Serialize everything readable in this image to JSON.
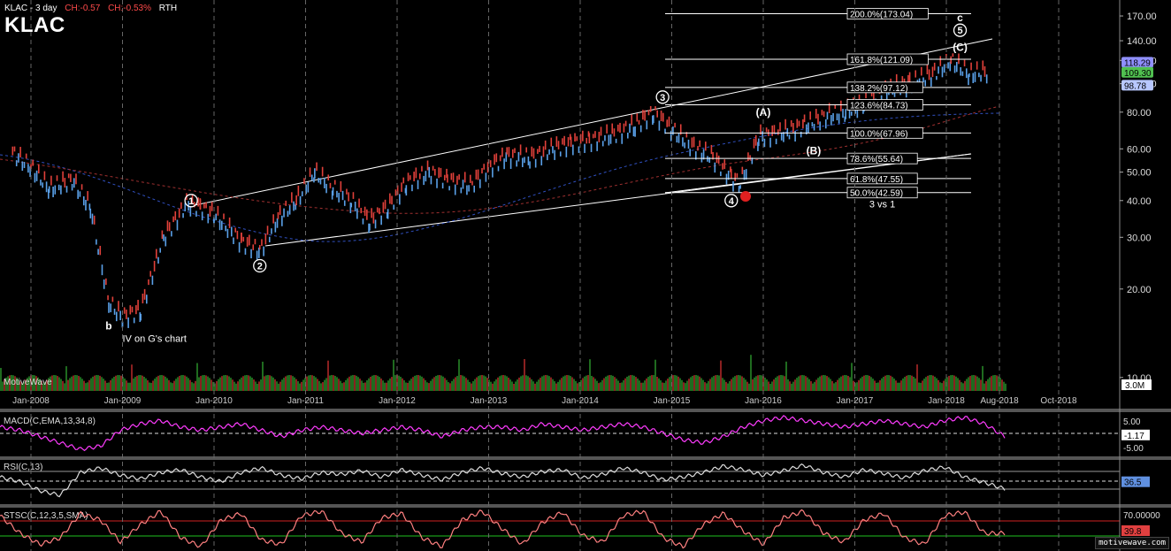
{
  "header": {
    "symbol_line": "KLAC - 3 day",
    "change_abs": "CH:-0.57",
    "change_pct": "CH:-0.53%",
    "session": "RTH",
    "big_symbol": "KLAC"
  },
  "brand": "MotiveWave",
  "watermark": "motivewave.com",
  "colors": {
    "background": "#000000",
    "up_candle": "#5aa0e8",
    "down_candle": "#e0403a",
    "fib_line": "#ffffff",
    "macd_line": "#ff3cff",
    "stoch_line": "#ff8080",
    "overbought": "#d02020",
    "oversold": "#20c020"
  },
  "chart_data": [
    {
      "type": "line",
      "title": "",
      "xlabel": "",
      "ylabel": "",
      "x_ticks": [
        "Jan-2008",
        "Jan-2009",
        "Jan-2010",
        "Jan-2011",
        "Jan-2012",
        "Jan-2013",
        "Jan-2014",
        "Jan-2015",
        "Jan-2016",
        "Jan-2017",
        "Jan-2018",
        "Aug-2018",
        "Oct-2018"
      ],
      "y_ticks": [
        "170.00",
        "140.00",
        "120.00",
        "100.00",
        "80.00",
        "60.00",
        "50.00",
        "40.00",
        "30.00",
        "20.00",
        "10.00"
      ],
      "y_scale": "log",
      "ylim": [
        9,
        190
      ],
      "price_labels": [
        {
          "text": "118.29",
          "bg": "#9090ff",
          "value": 118.29
        },
        {
          "text": "109.30",
          "bg": "#50c050",
          "value": 109.3
        },
        {
          "text": "98.78",
          "bg": "#b8c8ff",
          "value": 98.78
        }
      ],
      "series": [
        {
          "name": "price",
          "x": [
            2007.8,
            2008.0,
            2008.2,
            2008.45,
            2008.65,
            2008.85,
            2009.0,
            2009.2,
            2009.45,
            2009.7,
            2009.85,
            2010.0,
            2010.3,
            2010.5,
            2010.7,
            2010.9,
            2011.1,
            2011.3,
            2011.5,
            2011.7,
            2011.9,
            2012.1,
            2012.35,
            2012.55,
            2012.8,
            2013.0,
            2013.2,
            2013.45,
            2013.7,
            2013.9,
            2014.1,
            2014.35,
            2014.6,
            2014.8,
            2014.95,
            2015.2,
            2015.45,
            2015.65,
            2015.75,
            2015.95,
            2016.2,
            2016.45,
            2016.7,
            2016.9,
            2017.1,
            2017.35,
            2017.6,
            2017.85,
            2018.05,
            2018.25,
            2018.45
          ],
          "values": [
            58,
            52,
            44,
            47,
            38,
            18,
            16,
            17,
            30,
            39,
            38,
            36,
            29,
            27,
            35,
            40,
            50,
            44,
            40,
            34,
            38,
            46,
            50,
            47,
            45,
            52,
            57,
            56,
            60,
            63,
            64,
            67,
            72,
            80,
            72,
            62,
            56,
            48,
            46,
            66,
            68,
            72,
            78,
            80,
            86,
            96,
            100,
            108,
            120,
            108,
            110
          ]
        }
      ],
      "fib_levels": [
        {
          "text": "200.0%(173.04)",
          "value": 173.04
        },
        {
          "text": "161.8%(121.09)",
          "value": 121.09
        },
        {
          "text": "138.2%(97.12)",
          "value": 97.12
        },
        {
          "text": "123.6%(84.73)",
          "value": 84.73
        },
        {
          "text": "100.0%(67.96)",
          "value": 67.96
        },
        {
          "text": "78.6%(55.64)",
          "value": 55.64
        },
        {
          "text": "61.8%(47.55)",
          "value": 47.55
        },
        {
          "text": "50.0%(42.59)",
          "value": 42.59
        }
      ],
      "annotations": [
        {
          "text": "1",
          "circled": true,
          "x": 2009.75,
          "y": 40
        },
        {
          "text": "2",
          "circled": true,
          "x": 2010.5,
          "y": 24
        },
        {
          "text": "3",
          "circled": true,
          "x": 2014.9,
          "y": 90
        },
        {
          "text": "4",
          "circled": true,
          "x": 2015.65,
          "y": 40
        },
        {
          "text": "5",
          "circled": true,
          "x": 2018.15,
          "y": 152
        },
        {
          "text": "(A)",
          "circled": false,
          "x": 2016.0,
          "y": 80
        },
        {
          "text": "(B)",
          "circled": false,
          "x": 2016.55,
          "y": 59
        },
        {
          "text": "(C)",
          "circled": false,
          "x": 2018.15,
          "y": 133
        },
        {
          "text": "c",
          "circled": false,
          "x": 2018.15,
          "y": 168
        },
        {
          "text": "b",
          "circled": false,
          "x": 2008.85,
          "y": 15
        },
        {
          "text": "IV on G's chart",
          "circled": false,
          "x": 2009.0,
          "y": 13.6
        },
        {
          "text": "3 vs 1",
          "circled": false,
          "x": 2017.3,
          "y": 39
        }
      ],
      "volume_label": "3.0M"
    },
    {
      "type": "line",
      "title": "MACD(C,EMA,13,34,8)",
      "y_ticks": [
        "5.00",
        "-5.00"
      ],
      "ylim": [
        -7,
        7
      ],
      "current_label": "-1.17",
      "series": [
        {
          "name": "MACD",
          "values": [
            2,
            1,
            -1,
            -3,
            -5,
            -4,
            1,
            3,
            4,
            2,
            1,
            2,
            3,
            1,
            -1,
            1,
            2,
            1,
            0,
            1,
            2,
            1,
            -1,
            1,
            2,
            2,
            1,
            3,
            2,
            1,
            2,
            3,
            2,
            0,
            -2,
            -3,
            -1,
            2,
            4,
            5,
            4,
            3,
            2,
            3,
            4,
            3,
            2,
            4,
            5,
            3,
            -1
          ]
        }
      ]
    },
    {
      "type": "line",
      "title": "RSI(C,13)",
      "current_label": "36.5",
      "series": [
        {
          "name": "RSI",
          "values": [
            50,
            45,
            35,
            30,
            55,
            60,
            52,
            48,
            55,
            58,
            50,
            45,
            55,
            60,
            52,
            48,
            55,
            53,
            57,
            50,
            58,
            52,
            47,
            55,
            60,
            54,
            50,
            56,
            58,
            49,
            53,
            60,
            55,
            47,
            50,
            55,
            62,
            58,
            52,
            57,
            63,
            55,
            50,
            58,
            54,
            49,
            57,
            61,
            50,
            44,
            37
          ]
        }
      ]
    },
    {
      "type": "line",
      "title": "STSC(C,12,3,5,SMA)",
      "y_ticks": [
        "70.00000"
      ],
      "current_label": "39.8",
      "series": [
        {
          "name": "STSC",
          "values": [
            80,
            40,
            15,
            30,
            85,
            70,
            20,
            60,
            90,
            30,
            10,
            70,
            85,
            25,
            15,
            80,
            90,
            40,
            20,
            75,
            85,
            30,
            10,
            70,
            90,
            50,
            15,
            65,
            88,
            35,
            20,
            80,
            90,
            30,
            10,
            60,
            85,
            45,
            15,
            75,
            90,
            40,
            20,
            70,
            85,
            30,
            15,
            80,
            88,
            40,
            40
          ]
        }
      ]
    }
  ]
}
